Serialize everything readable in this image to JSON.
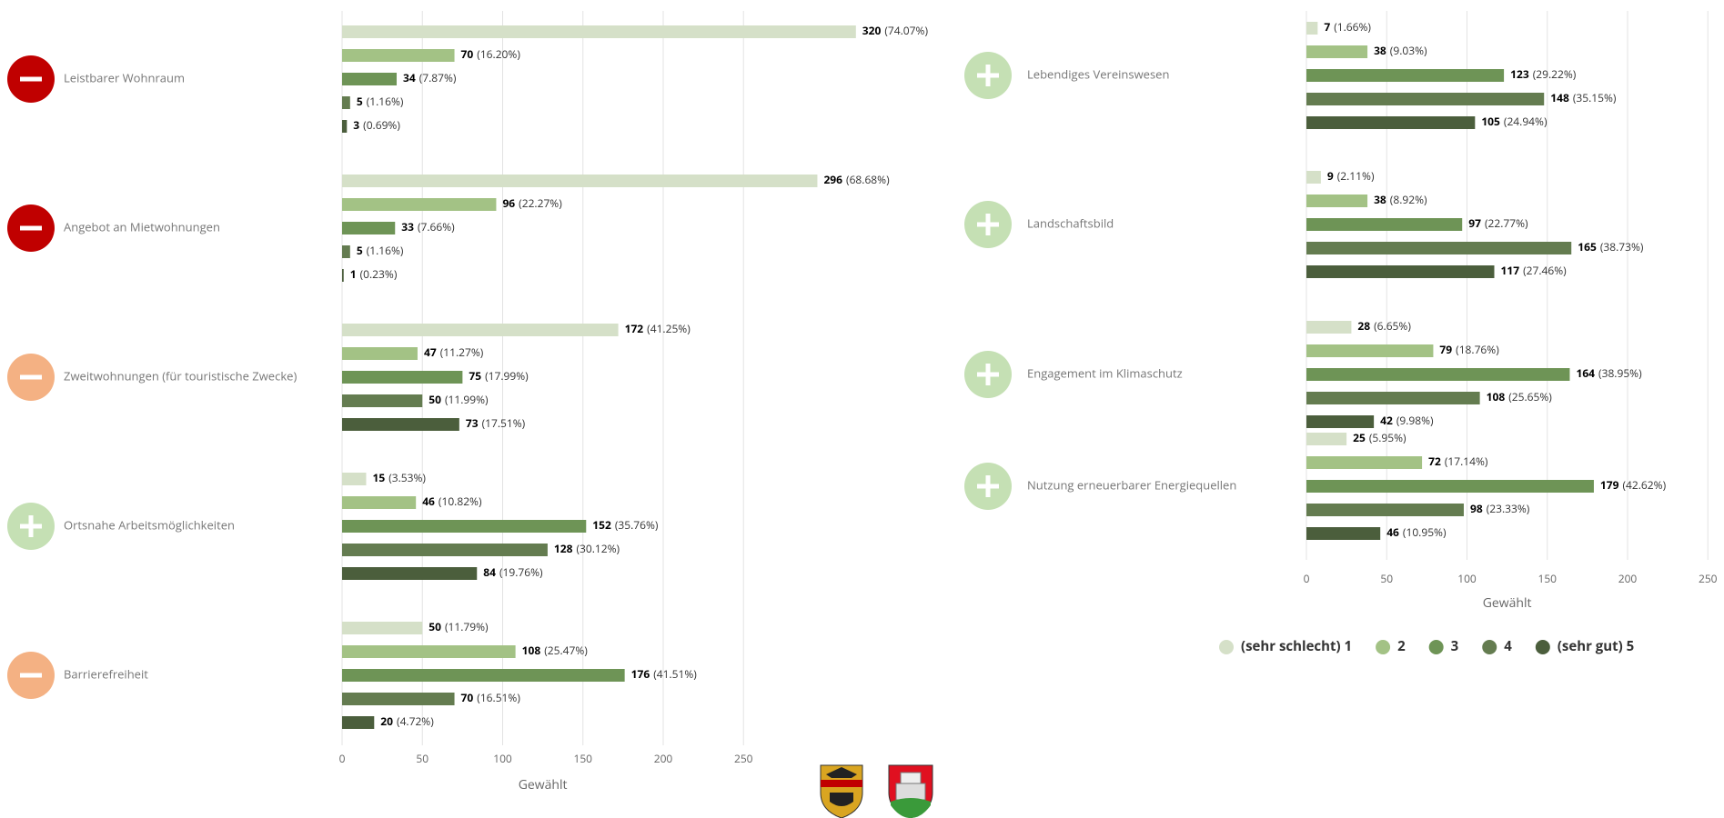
{
  "chart_data": [
    {
      "type": "bar",
      "orientation": "horizontal",
      "x_label": "Gewählt",
      "xlim": [
        0,
        350
      ],
      "xticks": [
        0,
        50,
        100,
        150,
        200,
        250
      ],
      "grid": true,
      "categories": [
        "Leistbarer Wohnraum",
        "Angebot an Mietwohnungen",
        "Zweitwohnungen (für touristische Zwecke)",
        "Ortsnahe Arbeitsmöglichkeiten",
        "Barrierefreiheit"
      ],
      "icons": [
        "minus",
        "minus",
        "minus",
        "plus",
        "minus"
      ],
      "icon_colors": [
        "#c00000",
        "#c00000",
        "#f4b183",
        "#c5e0b4",
        "#f4b183"
      ],
      "series": [
        {
          "name": "(sehr schlecht) 1",
          "color": "#d5e0c8",
          "values": [
            320,
            296,
            172,
            15,
            50
          ],
          "shares": [
            "(74.07%)",
            "(68.68%)",
            "(41.25%)",
            "(3.53%)",
            "(11.79%)"
          ]
        },
        {
          "name": "2",
          "color": "#a3c285",
          "values": [
            70,
            96,
            47,
            46,
            108
          ],
          "shares": [
            "(16.20%)",
            "(22.27%)",
            "(11.27%)",
            "(10.82%)",
            "(25.47%)"
          ]
        },
        {
          "name": "3",
          "color": "#6e9456",
          "values": [
            34,
            33,
            75,
            152,
            176
          ],
          "shares": [
            "(7.87%)",
            "(7.66%)",
            "(17.99%)",
            "(35.76%)",
            "(41.51%)"
          ]
        },
        {
          "name": "4",
          "color": "#647c50",
          "values": [
            5,
            5,
            50,
            128,
            70
          ],
          "shares": [
            "(1.16%)",
            "(1.16%)",
            "(11.99%)",
            "(30.12%)",
            "(16.51%)"
          ]
        },
        {
          "name": "(sehr gut) 5",
          "color": "#4b5e3c",
          "values": [
            3,
            1,
            73,
            84,
            20
          ],
          "shares": [
            "(0.69%)",
            "(0.23%)",
            "(17.51%)",
            "(19.76%)",
            "(4.72%)"
          ]
        }
      ]
    },
    {
      "type": "bar",
      "orientation": "horizontal",
      "x_label": "Gewählt",
      "xlim": [
        0,
        250
      ],
      "xticks": [
        0,
        50,
        100,
        150,
        200,
        250
      ],
      "grid": true,
      "legend": "bottom",
      "categories": [
        "Lebendiges Vereinswesen",
        "Landschaftsbild",
        "Engagement im Klimaschutz",
        "Nutzung erneuerbarer Energiequellen"
      ],
      "icons": [
        "plus",
        "plus",
        "plus",
        "plus"
      ],
      "icon_colors": [
        "#c5e0b4",
        "#c5e0b4",
        "#c5e0b4",
        "#c5e0b4"
      ],
      "series": [
        {
          "name": "(sehr schlecht) 1",
          "color": "#d5e0c8",
          "values": [
            7,
            9,
            28,
            25
          ],
          "shares": [
            "(1.66%)",
            "(2.11%)",
            "(6.65%)",
            "(5.95%)"
          ]
        },
        {
          "name": "2",
          "color": "#a3c285",
          "values": [
            38,
            38,
            79,
            72
          ],
          "shares": [
            "(9.03%)",
            "(8.92%)",
            "(18.76%)",
            "(17.14%)"
          ]
        },
        {
          "name": "3",
          "color": "#6e9456",
          "values": [
            123,
            97,
            164,
            179
          ],
          "shares": [
            "(29.22%)",
            "(22.77%)",
            "(38.95%)",
            "(42.62%)"
          ]
        },
        {
          "name": "4",
          "color": "#647c50",
          "values": [
            148,
            165,
            108,
            98
          ],
          "shares": [
            "(35.15%)",
            "(38.73%)",
            "(25.65%)",
            "(23.33%)"
          ]
        },
        {
          "name": "(sehr gut) 5",
          "color": "#4b5e3c",
          "values": [
            105,
            117,
            42,
            46
          ],
          "shares": [
            "(24.94%)",
            "(27.46%)",
            "(9.98%)",
            "(10.95%)"
          ]
        }
      ]
    }
  ]
}
